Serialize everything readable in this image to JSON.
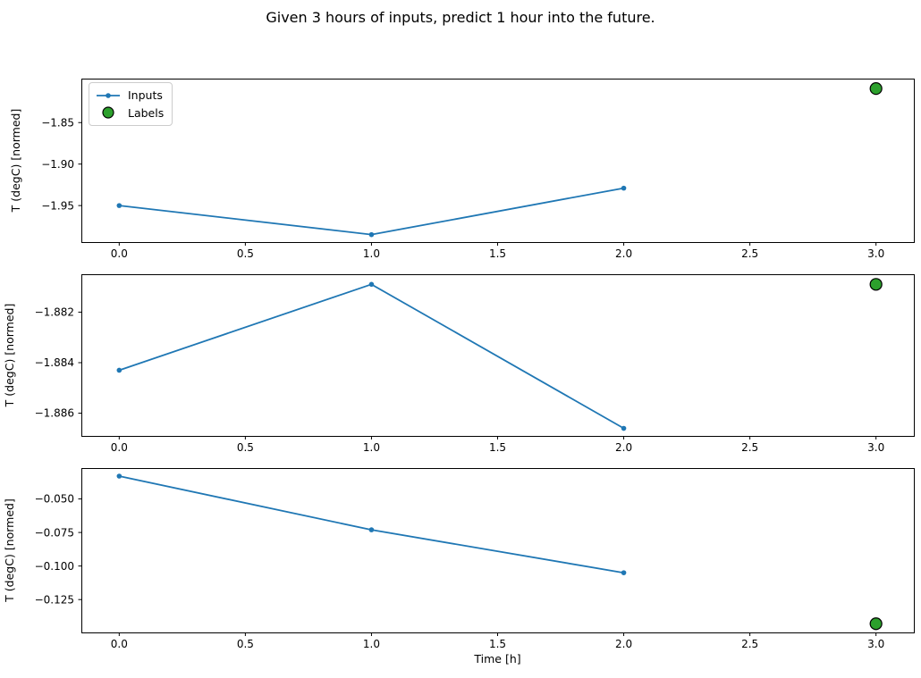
{
  "figure": {
    "title": "Given 3 hours of inputs, predict 1 hour into the future."
  },
  "colors": {
    "inputs": "#1f77b4",
    "labels": "#2ca02c",
    "label_edge": "#000000",
    "spine": "#000000",
    "text": "#000000",
    "legend_border": "#cccccc"
  },
  "legend": {
    "items": [
      {
        "label": "Inputs",
        "glyph": "line-with-dot"
      },
      {
        "label": "Labels",
        "glyph": "green-circle"
      }
    ]
  },
  "chart_data": [
    {
      "type": "line",
      "ylabel": "T (degC) [normed]",
      "xlabel": "",
      "x": [
        0.0,
        1.0,
        2.0
      ],
      "series": [
        {
          "name": "Inputs",
          "values": [
            -1.95,
            -1.985,
            -1.929
          ]
        }
      ],
      "label_point": {
        "name": "Labels",
        "x": 3.0,
        "y": -1.809
      },
      "xlim": [
        -0.15,
        3.15
      ],
      "ylim": [
        -1.994,
        -1.797
      ],
      "xticks": {
        "values": [
          0.0,
          0.5,
          1.0,
          1.5,
          2.0,
          2.5,
          3.0
        ],
        "labels": [
          "0.0",
          "0.5",
          "1.0",
          "1.5",
          "2.0",
          "2.5",
          "3.0"
        ]
      },
      "yticks": {
        "values": [
          -1.85,
          -1.9,
          -1.95
        ],
        "labels": [
          "−1.85",
          "−1.90",
          "−1.95"
        ]
      },
      "legend": true,
      "grid": false
    },
    {
      "type": "line",
      "ylabel": "T (degC) [normed]",
      "xlabel": "",
      "x": [
        0.0,
        1.0,
        2.0
      ],
      "series": [
        {
          "name": "Inputs",
          "values": [
            -1.8843,
            -1.8809,
            -1.8866
          ]
        }
      ],
      "label_point": {
        "name": "Labels",
        "x": 3.0,
        "y": -1.8809
      },
      "xlim": [
        -0.15,
        3.15
      ],
      "ylim": [
        -1.8869,
        -1.8805
      ],
      "xticks": {
        "values": [
          0.0,
          0.5,
          1.0,
          1.5,
          2.0,
          2.5,
          3.0
        ],
        "labels": [
          "0.0",
          "0.5",
          "1.0",
          "1.5",
          "2.0",
          "2.5",
          "3.0"
        ]
      },
      "yticks": {
        "values": [
          -1.882,
          -1.884,
          -1.886
        ],
        "labels": [
          "−1.882",
          "−1.884",
          "−1.886"
        ]
      },
      "legend": false,
      "grid": false
    },
    {
      "type": "line",
      "ylabel": "T (degC) [normed]",
      "xlabel": "Time [h]",
      "x": [
        0.0,
        1.0,
        2.0
      ],
      "series": [
        {
          "name": "Inputs",
          "values": [
            -0.033,
            -0.073,
            -0.105
          ]
        }
      ],
      "label_point": {
        "name": "Labels",
        "x": 3.0,
        "y": -0.143
      },
      "xlim": [
        -0.15,
        3.15
      ],
      "ylim": [
        -0.1495,
        -0.027
      ],
      "xticks": {
        "values": [
          0.0,
          0.5,
          1.0,
          1.5,
          2.0,
          2.5,
          3.0
        ],
        "labels": [
          "0.0",
          "0.5",
          "1.0",
          "1.5",
          "2.0",
          "2.5",
          "3.0"
        ]
      },
      "yticks": {
        "values": [
          -0.05,
          -0.075,
          -0.1,
          -0.125
        ],
        "labels": [
          "−0.050",
          "−0.075",
          "−0.100",
          "−0.125"
        ]
      },
      "legend": false,
      "grid": false
    }
  ]
}
